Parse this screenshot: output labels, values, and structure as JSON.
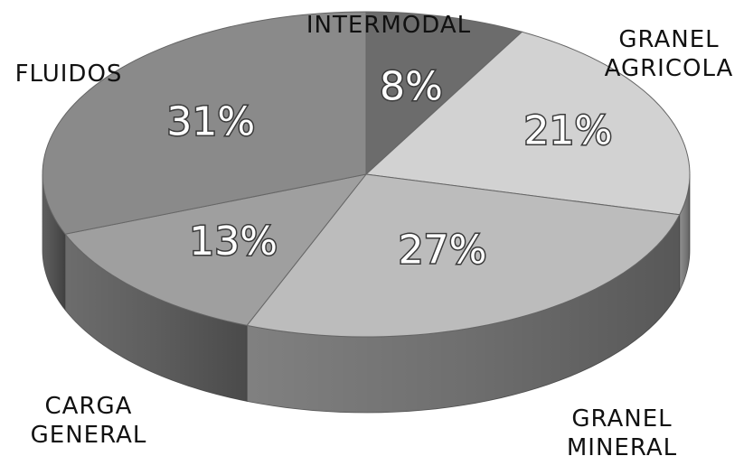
{
  "chart_data": {
    "type": "pie",
    "style": "3d",
    "start": "top",
    "direction": "clockwise",
    "categories": [
      "INTERMODAL",
      "GRANEL AGRICOLA",
      "GRANEL MINERAL",
      "CARGA GENERAL",
      "FLUIDOS"
    ],
    "values": [
      8,
      21,
      27,
      13,
      31
    ],
    "value_labels": [
      "8%",
      "21%",
      "27%",
      "13%",
      "31%"
    ],
    "colors": [
      "#6c6c6c",
      "#d2d2d2",
      "#bcbcbc",
      "#9f9f9f",
      "#8a8a8a"
    ],
    "category_labels": [
      [
        "INTERMODAL"
      ],
      [
        "GRANEL",
        "AGRICOLA"
      ],
      [
        "GRANEL",
        "MINERAL"
      ],
      [
        "CARGA",
        "GENERAL"
      ],
      [
        "FLUIDOS"
      ]
    ],
    "legend": "none",
    "grid": false
  }
}
